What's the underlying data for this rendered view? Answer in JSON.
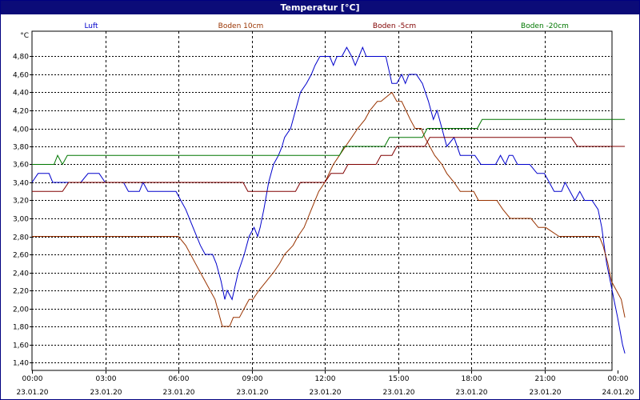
{
  "window": {
    "title": "Temperatur [°C]"
  },
  "chart_data": {
    "type": "line",
    "title": "Temperatur [°C]",
    "ylabel": "°C",
    "xlabel": "",
    "ylim": [
      1.4,
      4.98
    ],
    "xlim": [
      0,
      24
    ],
    "grid": true,
    "legend_position": "top",
    "y_ticks": [
      "1,40",
      "1,60",
      "1,80",
      "2,00",
      "2,20",
      "2,40",
      "2,60",
      "2,80",
      "3,00",
      "3,20",
      "3,40",
      "3,60",
      "3,80",
      "4,00",
      "4,20",
      "4,40",
      "4,60",
      "4,80"
    ],
    "x_ticks": [
      {
        "time": "00:00",
        "date": "23.01.20"
      },
      {
        "time": "03:00",
        "date": "23.01.20"
      },
      {
        "time": "06:00",
        "date": "23.01.20"
      },
      {
        "time": "09:00",
        "date": "23.01.20"
      },
      {
        "time": "12:00",
        "date": "23.01.20"
      },
      {
        "time": "15:00",
        "date": "23.01.20"
      },
      {
        "time": "18:00",
        "date": "23.01.20"
      },
      {
        "time": "21:00",
        "date": "23.01.20"
      },
      {
        "time": "00:00",
        "date": "24.01.20"
      }
    ],
    "series": [
      {
        "name": "Luft",
        "color": "#0000cc",
        "points": [
          [
            0,
            3.4
          ],
          [
            0.25,
            3.5
          ],
          [
            0.7,
            3.5
          ],
          [
            0.85,
            3.4
          ],
          [
            1.1,
            3.4
          ],
          [
            2.0,
            3.4
          ],
          [
            2.3,
            3.5
          ],
          [
            2.75,
            3.5
          ],
          [
            3.0,
            3.4
          ],
          [
            3.3,
            3.4
          ],
          [
            3.75,
            3.4
          ],
          [
            3.95,
            3.3
          ],
          [
            4.4,
            3.3
          ],
          [
            4.55,
            3.4
          ],
          [
            4.75,
            3.3
          ],
          [
            5.9,
            3.3
          ],
          [
            6.1,
            3.2
          ],
          [
            6.3,
            3.1
          ],
          [
            6.6,
            2.9
          ],
          [
            6.9,
            2.7
          ],
          [
            7.1,
            2.6
          ],
          [
            7.4,
            2.6
          ],
          [
            7.55,
            2.5
          ],
          [
            7.75,
            2.3
          ],
          [
            7.9,
            2.1
          ],
          [
            8.0,
            2.2
          ],
          [
            8.2,
            2.1
          ],
          [
            8.45,
            2.4
          ],
          [
            8.7,
            2.6
          ],
          [
            8.9,
            2.8
          ],
          [
            9.1,
            2.9
          ],
          [
            9.25,
            2.8
          ],
          [
            9.35,
            2.9
          ],
          [
            9.5,
            3.1
          ],
          [
            9.7,
            3.4
          ],
          [
            9.9,
            3.6
          ],
          [
            10.1,
            3.7
          ],
          [
            10.25,
            3.8
          ],
          [
            10.35,
            3.9
          ],
          [
            10.6,
            4.0
          ],
          [
            10.8,
            4.2
          ],
          [
            11.0,
            4.4
          ],
          [
            11.25,
            4.5
          ],
          [
            11.45,
            4.6
          ],
          [
            11.6,
            4.7
          ],
          [
            11.8,
            4.8
          ],
          [
            12.0,
            4.8
          ],
          [
            12.2,
            4.8
          ],
          [
            12.35,
            4.7
          ],
          [
            12.5,
            4.8
          ],
          [
            12.7,
            4.8
          ],
          [
            12.9,
            4.9
          ],
          [
            13.1,
            4.8
          ],
          [
            13.25,
            4.7
          ],
          [
            13.55,
            4.9
          ],
          [
            13.7,
            4.8
          ],
          [
            13.85,
            4.8
          ],
          [
            14.5,
            4.8
          ],
          [
            14.75,
            4.5
          ],
          [
            14.95,
            4.5
          ],
          [
            15.15,
            4.6
          ],
          [
            15.3,
            4.5
          ],
          [
            15.45,
            4.6
          ],
          [
            15.75,
            4.6
          ],
          [
            16.0,
            4.5
          ],
          [
            16.25,
            4.3
          ],
          [
            16.45,
            4.1
          ],
          [
            16.6,
            4.2
          ],
          [
            16.8,
            4.0
          ],
          [
            17.0,
            3.8
          ],
          [
            17.3,
            3.9
          ],
          [
            17.55,
            3.7
          ],
          [
            18.15,
            3.7
          ],
          [
            18.4,
            3.6
          ],
          [
            19.0,
            3.6
          ],
          [
            19.2,
            3.7
          ],
          [
            19.4,
            3.6
          ],
          [
            19.55,
            3.7
          ],
          [
            19.7,
            3.7
          ],
          [
            19.9,
            3.6
          ],
          [
            20.4,
            3.6
          ],
          [
            20.7,
            3.5
          ],
          [
            21.0,
            3.5
          ],
          [
            21.2,
            3.4
          ],
          [
            21.4,
            3.3
          ],
          [
            21.7,
            3.3
          ],
          [
            21.85,
            3.4
          ],
          [
            22.05,
            3.3
          ],
          [
            22.25,
            3.2
          ],
          [
            22.45,
            3.3
          ],
          [
            22.65,
            3.2
          ],
          [
            22.95,
            3.2
          ],
          [
            23.2,
            3.1
          ],
          [
            23.35,
            2.9
          ],
          [
            23.45,
            2.7
          ],
          [
            23.55,
            2.5
          ],
          [
            23.7,
            2.3
          ],
          [
            23.85,
            2.1
          ],
          [
            24.0,
            1.9
          ],
          [
            24.1,
            1.75
          ],
          [
            24.2,
            1.6
          ],
          [
            24.3,
            1.5
          ]
        ]
      },
      {
        "name": "Boden 10cm",
        "color": "#993300",
        "points": [
          [
            0,
            2.8
          ],
          [
            6.0,
            2.8
          ],
          [
            6.3,
            2.7
          ],
          [
            6.7,
            2.5
          ],
          [
            7.1,
            2.3
          ],
          [
            7.5,
            2.1
          ],
          [
            7.8,
            1.8
          ],
          [
            8.1,
            1.8
          ],
          [
            8.25,
            1.9
          ],
          [
            8.5,
            1.9
          ],
          [
            8.7,
            2.0
          ],
          [
            8.9,
            2.1
          ],
          [
            9.05,
            2.1
          ],
          [
            9.3,
            2.2
          ],
          [
            9.6,
            2.3
          ],
          [
            9.9,
            2.4
          ],
          [
            10.15,
            2.5
          ],
          [
            10.35,
            2.6
          ],
          [
            10.7,
            2.7
          ],
          [
            10.9,
            2.8
          ],
          [
            11.15,
            2.9
          ],
          [
            11.45,
            3.1
          ],
          [
            11.75,
            3.3
          ],
          [
            12.0,
            3.4
          ],
          [
            12.35,
            3.6
          ],
          [
            12.6,
            3.7
          ],
          [
            12.85,
            3.8
          ],
          [
            13.1,
            3.9
          ],
          [
            13.35,
            4.0
          ],
          [
            13.65,
            4.1
          ],
          [
            13.85,
            4.2
          ],
          [
            14.15,
            4.3
          ],
          [
            14.3,
            4.3
          ],
          [
            14.75,
            4.4
          ],
          [
            14.95,
            4.3
          ],
          [
            15.15,
            4.3
          ],
          [
            15.5,
            4.1
          ],
          [
            15.7,
            4.0
          ],
          [
            15.95,
            4.0
          ],
          [
            16.1,
            3.9
          ],
          [
            16.3,
            3.8
          ],
          [
            16.5,
            3.7
          ],
          [
            16.8,
            3.6
          ],
          [
            17.0,
            3.5
          ],
          [
            17.3,
            3.4
          ],
          [
            17.55,
            3.3
          ],
          [
            18.1,
            3.3
          ],
          [
            18.3,
            3.2
          ],
          [
            19.05,
            3.2
          ],
          [
            19.3,
            3.1
          ],
          [
            19.6,
            3.0
          ],
          [
            20.45,
            3.0
          ],
          [
            20.75,
            2.9
          ],
          [
            21.05,
            2.9
          ],
          [
            21.6,
            2.8
          ],
          [
            23.25,
            2.8
          ],
          [
            23.4,
            2.7
          ],
          [
            23.6,
            2.5
          ],
          [
            23.75,
            2.3
          ],
          [
            23.95,
            2.2
          ],
          [
            24.15,
            2.1
          ],
          [
            24.3,
            1.9
          ]
        ]
      },
      {
        "name": "Boden -5cm",
        "color": "#800000",
        "points": [
          [
            0,
            3.3
          ],
          [
            1.25,
            3.3
          ],
          [
            1.5,
            3.4
          ],
          [
            8.65,
            3.4
          ],
          [
            8.85,
            3.3
          ],
          [
            10.8,
            3.3
          ],
          [
            11.0,
            3.4
          ],
          [
            12.0,
            3.4
          ],
          [
            12.25,
            3.5
          ],
          [
            12.75,
            3.5
          ],
          [
            12.95,
            3.6
          ],
          [
            14.1,
            3.6
          ],
          [
            14.3,
            3.7
          ],
          [
            14.75,
            3.7
          ],
          [
            14.95,
            3.8
          ],
          [
            16.1,
            3.8
          ],
          [
            16.3,
            3.9
          ],
          [
            22.1,
            3.9
          ],
          [
            22.35,
            3.8
          ],
          [
            24.3,
            3.8
          ]
        ]
      },
      {
        "name": "Boden -20cm",
        "color": "#007700",
        "points": [
          [
            0,
            3.6
          ],
          [
            0.9,
            3.6
          ],
          [
            1.05,
            3.7
          ],
          [
            1.25,
            3.6
          ],
          [
            1.45,
            3.7
          ],
          [
            12.6,
            3.7
          ],
          [
            12.8,
            3.8
          ],
          [
            14.45,
            3.8
          ],
          [
            14.65,
            3.9
          ],
          [
            16.0,
            3.9
          ],
          [
            16.2,
            4.0
          ],
          [
            18.25,
            4.0
          ],
          [
            18.45,
            4.1
          ],
          [
            24.3,
            4.1
          ]
        ]
      }
    ]
  }
}
